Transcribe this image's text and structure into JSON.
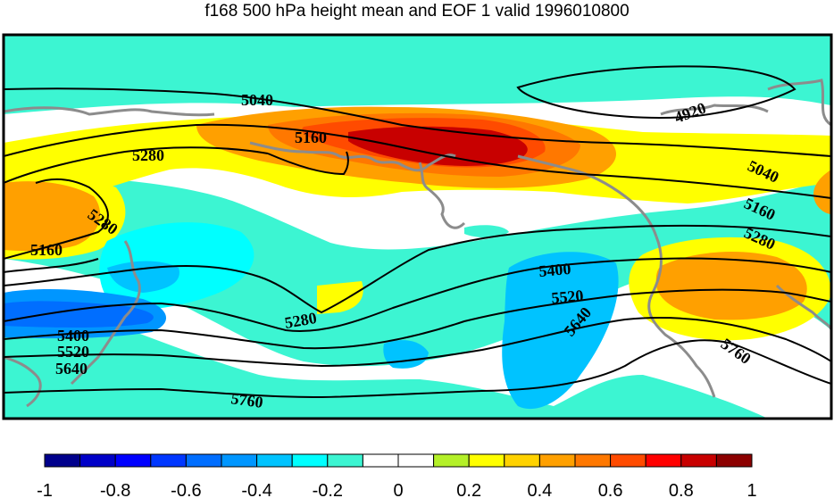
{
  "title": "f168 500 hPa height mean and EOF 1 valid 1996010800",
  "colors": {
    "background": "#ffffff",
    "coastline": "#8c8c8c",
    "contour": "#000000",
    "frame": "#000000"
  },
  "colorbar": {
    "colors": [
      "#00008c",
      "#0000c8",
      "#0000ff",
      "#0037ff",
      "#006eff",
      "#0096ff",
      "#00c3ff",
      "#00ffff",
      "#3cf5d2",
      "#ffffff",
      "#ffffff",
      "#b4f028",
      "#ffff00",
      "#ffd200",
      "#ffa000",
      "#ff7800",
      "#ff4b00",
      "#ff0000",
      "#c80000",
      "#8c0000"
    ],
    "tick_labels": [
      "-1",
      "-0.8",
      "-0.6",
      "-0.4",
      "-0.2",
      "0",
      "0.2",
      "0.4",
      "0.6",
      "0.8",
      "1"
    ]
  },
  "contours": [
    {
      "value": "4920"
    },
    {
      "value": "5040"
    },
    {
      "value": "5160"
    },
    {
      "value": "5280"
    },
    {
      "value": "5400"
    },
    {
      "value": "5520"
    },
    {
      "value": "5640"
    },
    {
      "value": "5760"
    }
  ],
  "contour_labels": [
    "5040",
    "4920",
    "5160",
    "5280",
    "5040",
    "5280",
    "5160",
    "5160",
    "5280",
    "5400",
    "5520",
    "5280",
    "5640",
    "5400",
    "5520",
    "5640",
    "5760",
    "5760"
  ]
}
